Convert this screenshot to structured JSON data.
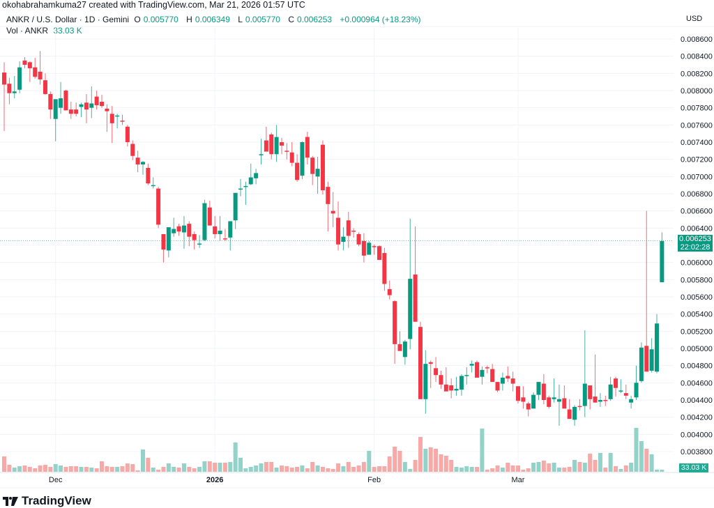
{
  "header": {
    "credit": "okohabrahamkuma27 created with TradingView.com, Mar 21, 2026 01:57 UTC",
    "symbol": "ANKR / U.S. Dollar · 1D · Gemini",
    "open_label": "O",
    "open": "0.005770",
    "high_label": "H",
    "high": "0.006349",
    "low_label": "L",
    "low": "0.005770",
    "close_label": "C",
    "close": "0.006253",
    "change": "+0.000964 (+18.23%)",
    "vol_label": "Vol · ANKR",
    "vol_value": "33.03 K"
  },
  "axis": {
    "currency": "USD",
    "price_tag": "0.006253",
    "countdown": "22:02:28",
    "vol_tag": "33.03 K"
  },
  "brand": {
    "name": "TradingView",
    "icon": "tradingview-logo-icon"
  },
  "colors": {
    "up": "#089981",
    "down": "#f23645",
    "vol_up": "#92d2c8",
    "vol_down": "#f7a9a7",
    "grid": "#f0f3fa"
  },
  "chart_data": {
    "type": "candlestick",
    "title": "ANKR / U.S. Dollar · 1D · Gemini",
    "ylabel": "USD",
    "ylim": [
      0.0037,
      0.0087
    ],
    "yticks": [
      0.0086,
      0.0084,
      0.0082,
      0.008,
      0.0078,
      0.0076,
      0.0074,
      0.0072,
      0.007,
      0.0068,
      0.0066,
      0.0064,
      0.0062,
      0.006,
      0.0058,
      0.0056,
      0.0054,
      0.0052,
      0.005,
      0.0048,
      0.0046,
      0.0044,
      0.0042,
      0.004,
      0.0038
    ],
    "xticks": [
      {
        "label": "Dec",
        "index": 10,
        "bold": false
      },
      {
        "label": "2026",
        "index": 41,
        "bold": true
      },
      {
        "label": "Feb",
        "index": 72,
        "bold": false
      },
      {
        "label": "Mar",
        "index": 100,
        "bold": false
      }
    ],
    "last": {
      "open": 0.00577,
      "high": 0.006349,
      "low": 0.00577,
      "close": 0.006253,
      "volume": "33.03K"
    },
    "candles": [
      [
        0.00821,
        0.00833,
        0.00753,
        0.00807
      ],
      [
        0.00808,
        0.00815,
        0.00784,
        0.00797
      ],
      [
        0.00797,
        0.00817,
        0.00791,
        0.00799
      ],
      [
        0.00801,
        0.00834,
        0.00797,
        0.00827
      ],
      [
        0.00835,
        0.00839,
        0.00826,
        0.0083
      ],
      [
        0.00833,
        0.00834,
        0.0081,
        0.00826
      ],
      [
        0.00827,
        0.00838,
        0.00814,
        0.00816
      ],
      [
        0.00822,
        0.00846,
        0.00807,
        0.00813
      ],
      [
        0.00812,
        0.0082,
        0.00795,
        0.00796
      ],
      [
        0.00796,
        0.00799,
        0.00767,
        0.00778
      ],
      [
        0.00767,
        0.00788,
        0.00741,
        0.0079
      ],
      [
        0.0078,
        0.0081,
        0.00773,
        0.00791
      ],
      [
        0.008,
        0.00801,
        0.00777,
        0.00777
      ],
      [
        0.00778,
        0.00787,
        0.00767,
        0.00773
      ],
      [
        0.00778,
        0.00786,
        0.0077,
        0.00773
      ],
      [
        0.00781,
        0.00786,
        0.00769,
        0.00784
      ],
      [
        0.00786,
        0.00796,
        0.00762,
        0.00778
      ],
      [
        0.0078,
        0.00805,
        0.00768,
        0.00785
      ],
      [
        0.00793,
        0.008,
        0.00778,
        0.00783
      ],
      [
        0.00787,
        0.00795,
        0.0078,
        0.00782
      ],
      [
        0.00779,
        0.00784,
        0.00752,
        0.00776
      ],
      [
        0.00773,
        0.00782,
        0.00739,
        0.00762
      ],
      [
        0.0077,
        0.00773,
        0.00756,
        0.00771
      ],
      [
        0.00765,
        0.00772,
        0.0076,
        0.00764
      ],
      [
        0.00758,
        0.0076,
        0.00735,
        0.0074
      ],
      [
        0.00738,
        0.00742,
        0.00719,
        0.00724
      ],
      [
        0.00722,
        0.0073,
        0.00705,
        0.00714
      ],
      [
        0.00714,
        0.00718,
        0.00702,
        0.00717
      ],
      [
        0.0071,
        0.00715,
        0.0069,
        0.00692
      ],
      [
        0.00689,
        0.00699,
        0.00686,
        0.0069
      ],
      [
        0.00686,
        0.00688,
        0.0064,
        0.00644
      ],
      [
        0.00633,
        0.0063,
        0.006,
        0.00615
      ],
      [
        0.00614,
        0.0064,
        0.00606,
        0.00641
      ],
      [
        0.00634,
        0.00652,
        0.0063,
        0.00639
      ],
      [
        0.00642,
        0.00645,
        0.00631,
        0.00636
      ],
      [
        0.00635,
        0.00654,
        0.00616,
        0.00643
      ],
      [
        0.00645,
        0.00648,
        0.00619,
        0.0063
      ],
      [
        0.00633,
        0.00636,
        0.00615,
        0.00626
      ],
      [
        0.00621,
        0.00632,
        0.00617,
        0.00622
      ],
      [
        0.00626,
        0.00673,
        0.00625,
        0.00669
      ],
      [
        0.00664,
        0.00672,
        0.00643,
        0.00643
      ],
      [
        0.00642,
        0.00654,
        0.00628,
        0.00633
      ],
      [
        0.00633,
        0.00654,
        0.00625,
        0.00637
      ],
      [
        0.00628,
        0.00639,
        0.00625,
        0.00627
      ],
      [
        0.00629,
        0.00648,
        0.00614,
        0.00648
      ],
      [
        0.00649,
        0.00678,
        0.00639,
        0.00681
      ],
      [
        0.00686,
        0.00697,
        0.00677,
        0.00686
      ],
      [
        0.00689,
        0.00694,
        0.00667,
        0.00689
      ],
      [
        0.00691,
        0.00715,
        0.0069,
        0.00699
      ],
      [
        0.00698,
        0.00709,
        0.00691,
        0.00704
      ],
      [
        0.00726,
        0.00744,
        0.00714,
        0.00726
      ],
      [
        0.00742,
        0.00758,
        0.0074,
        0.00729
      ],
      [
        0.00749,
        0.00751,
        0.0072,
        0.00726
      ],
      [
        0.00726,
        0.0076,
        0.00717,
        0.00746
      ],
      [
        0.0074,
        0.00745,
        0.00726,
        0.00736
      ],
      [
        0.0073,
        0.00739,
        0.0072,
        0.00729
      ],
      [
        0.00728,
        0.0074,
        0.00712,
        0.00716
      ],
      [
        0.00716,
        0.00726,
        0.00694,
        0.00696
      ],
      [
        0.00701,
        0.00741,
        0.00697,
        0.0074
      ],
      [
        0.00746,
        0.00752,
        0.00714,
        0.00722
      ],
      [
        0.00722,
        0.00724,
        0.0069,
        0.00703
      ],
      [
        0.007,
        0.00723,
        0.0068,
        0.00709
      ],
      [
        0.00737,
        0.00742,
        0.00679,
        0.00684
      ],
      [
        0.00688,
        0.00694,
        0.00636,
        0.00668
      ],
      [
        0.0066,
        0.00682,
        0.00641,
        0.00657
      ],
      [
        0.00652,
        0.00671,
        0.00614,
        0.00621
      ],
      [
        0.00624,
        0.00641,
        0.00614,
        0.0063
      ],
      [
        0.00649,
        0.00659,
        0.00617,
        0.00631
      ],
      [
        0.00637,
        0.0064,
        0.00629,
        0.00636
      ],
      [
        0.00633,
        0.00635,
        0.00619,
        0.00621
      ],
      [
        0.00625,
        0.00634,
        0.006,
        0.00608
      ],
      [
        0.00609,
        0.00625,
        0.0061,
        0.00623
      ],
      [
        0.00619,
        0.00621,
        0.00609,
        0.00618
      ],
      [
        0.00619,
        0.0062,
        0.00603,
        0.00603
      ],
      [
        0.00611,
        0.00617,
        0.00567,
        0.00575
      ],
      [
        0.00569,
        0.00579,
        0.00557,
        0.00562
      ],
      [
        0.00555,
        0.00556,
        0.00482,
        0.00505
      ],
      [
        0.00505,
        0.0052,
        0.00499,
        0.00497
      ],
      [
        0.0049,
        0.0051,
        0.00481,
        0.00508
      ],
      [
        0.00511,
        0.00651,
        0.00499,
        0.00581
      ],
      [
        0.00586,
        0.00642,
        0.00541,
        0.00531
      ],
      [
        0.00525,
        0.00531,
        0.00444,
        0.00441
      ],
      [
        0.00441,
        0.00498,
        0.00424,
        0.00482
      ],
      [
        0.00484,
        0.00486,
        0.00454,
        0.00482
      ],
      [
        0.00477,
        0.0049,
        0.00461,
        0.00469
      ],
      [
        0.00469,
        0.00474,
        0.00453,
        0.00458
      ],
      [
        0.00458,
        0.00478,
        0.0045,
        0.0045
      ],
      [
        0.00457,
        0.00465,
        0.00442,
        0.00451
      ],
      [
        0.00451,
        0.00467,
        0.00445,
        0.00453
      ],
      [
        0.00452,
        0.0047,
        0.00445,
        0.00468
      ],
      [
        0.00469,
        0.00478,
        0.00458,
        0.00469
      ],
      [
        0.0048,
        0.00486,
        0.00472,
        0.00482
      ],
      [
        0.00484,
        0.00486,
        0.00467,
        0.00466
      ],
      [
        0.00467,
        0.00479,
        0.00458,
        0.00475
      ],
      [
        0.00478,
        0.0048,
        0.00471,
        0.00477
      ],
      [
        0.00476,
        0.00482,
        0.00462,
        0.00461
      ],
      [
        0.00461,
        0.00461,
        0.00449,
        0.00451
      ],
      [
        0.00459,
        0.00472,
        0.00451,
        0.00466
      ],
      [
        0.00468,
        0.00479,
        0.00461,
        0.00465
      ],
      [
        0.00465,
        0.00473,
        0.0045,
        0.00459
      ],
      [
        0.00456,
        0.00456,
        0.00436,
        0.00439
      ],
      [
        0.00443,
        0.00456,
        0.0043,
        0.00438
      ],
      [
        0.00436,
        0.00438,
        0.00421,
        0.00429
      ],
      [
        0.0043,
        0.00449,
        0.00432,
        0.00446
      ],
      [
        0.00446,
        0.0046,
        0.0044,
        0.00461
      ],
      [
        0.00459,
        0.0047,
        0.00435,
        0.0044
      ],
      [
        0.00443,
        0.00445,
        0.0043,
        0.00432
      ],
      [
        0.00441,
        0.00465,
        0.00437,
        0.00443
      ],
      [
        0.00438,
        0.00458,
        0.0041,
        0.00441
      ],
      [
        0.00442,
        0.00457,
        0.00437,
        0.0043
      ],
      [
        0.00429,
        0.00441,
        0.0042,
        0.00418
      ],
      [
        0.00417,
        0.00434,
        0.0041,
        0.00432
      ],
      [
        0.00433,
        0.00441,
        0.00428,
        0.00432
      ],
      [
        0.00433,
        0.00521,
        0.0042,
        0.00459
      ],
      [
        0.00457,
        0.00452,
        0.00429,
        0.00441
      ],
      [
        0.00444,
        0.00493,
        0.00437,
        0.00437
      ],
      [
        0.00438,
        0.00448,
        0.00432,
        0.0044
      ],
      [
        0.0044,
        0.00445,
        0.00433,
        0.00439
      ],
      [
        0.00441,
        0.00467,
        0.00439,
        0.00458
      ],
      [
        0.00465,
        0.00467,
        0.00444,
        0.00454
      ],
      [
        0.0045,
        0.00464,
        0.00448,
        0.00451
      ],
      [
        0.00448,
        0.00458,
        0.00441,
        0.00445
      ],
      [
        0.00437,
        0.00445,
        0.0043,
        0.00441
      ],
      [
        0.00443,
        0.0048,
        0.0044,
        0.0046
      ],
      [
        0.00462,
        0.00507,
        0.0046,
        0.00501
      ],
      [
        0.00503,
        0.0066,
        0.00481,
        0.00473
      ],
      [
        0.00474,
        0.00512,
        0.00472,
        0.00499
      ],
      [
        0.00473,
        0.0054,
        0.00471,
        0.00529
      ],
      [
        0.00577,
        0.00635,
        0.00577,
        0.00625
      ]
    ],
    "volumes": [
      22,
      10,
      6,
      8,
      9,
      7,
      5,
      9,
      10,
      7,
      11,
      9,
      7,
      8,
      8,
      7,
      7,
      6,
      5,
      15,
      8,
      7,
      7,
      8,
      12,
      11,
      2,
      32,
      20,
      6,
      3,
      7,
      12,
      7,
      6,
      12,
      7,
      5,
      7,
      15,
      15,
      13,
      13,
      13,
      14,
      42,
      20,
      5,
      7,
      9,
      12,
      14,
      14,
      6,
      9,
      8,
      6,
      7,
      9,
      5,
      14,
      9,
      7,
      5,
      4,
      12,
      8,
      14,
      7,
      9,
      14,
      30,
      7,
      8,
      8,
      22,
      36,
      30,
      14,
      4,
      17,
      50,
      33,
      35,
      33,
      25,
      23,
      17,
      7,
      6,
      8,
      7,
      7,
      62,
      3,
      5,
      9,
      6,
      13,
      9,
      9,
      3,
      5,
      13,
      14,
      16,
      12,
      13,
      6,
      6,
      7,
      17,
      14,
      13,
      26,
      17,
      27,
      6,
      27,
      8,
      4,
      9,
      13,
      63,
      44,
      33,
      25,
      3,
      3,
      3
    ]
  }
}
